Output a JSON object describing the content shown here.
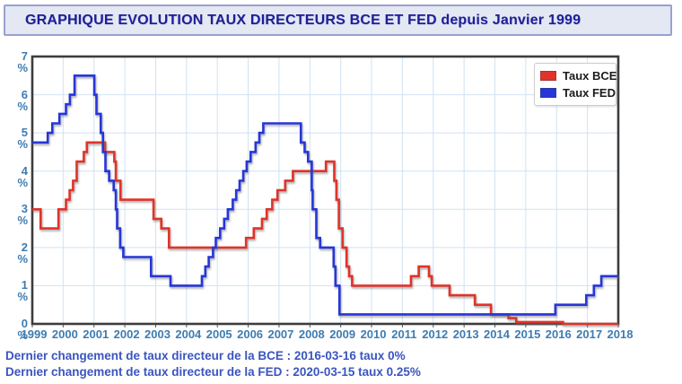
{
  "header": {
    "title": "GRAPHIQUE EVOLUTION TAUX DIRECTEURS BCE ET FED depuis Janvier 1999"
  },
  "footer": {
    "line1": "Dernier changement de taux directeur de la BCE : 2016-03-16 taux 0%",
    "line2": "Dernier changement de taux directeur de la FED : 2020-03-15 taux 0.25%"
  },
  "colors": {
    "bce_line": "#e0332a",
    "fed_line": "#2636d9",
    "grid": "#cfe2f4",
    "frame": "#3d3d3d",
    "axis_label": "#3e7cb1",
    "title_text": "#1f1f99",
    "title_bg": "#e3e8f3",
    "title_border": "#99a1cd",
    "footer_text": "#3a55c0"
  },
  "chart_data": {
    "type": "line",
    "subtype": "step",
    "title": "GRAPHIQUE EVOLUTION TAUX DIRECTEURS BCE ET FED depuis Janvier 1999",
    "xlabel": "",
    "ylabel": "",
    "y_unit": "%",
    "x_range": [
      1999,
      2018
    ],
    "y_range": [
      0,
      7
    ],
    "grid": true,
    "legend_position": "top-right",
    "x_ticks": [
      "1999",
      "2000",
      "2001",
      "2002",
      "2003",
      "2004",
      "2005",
      "2006",
      "2007",
      "2008",
      "2009",
      "2010",
      "2011",
      "2012",
      "2013",
      "2014",
      "2015",
      "2016",
      "2017",
      "2018"
    ],
    "y_ticks": [
      "0",
      "1",
      "2",
      "3",
      "4",
      "5",
      "6",
      "7"
    ],
    "legend": [
      {
        "label": "Taux BCE",
        "color": "#e0332a"
      },
      {
        "label": "Taux FED",
        "color": "#2636d9"
      }
    ],
    "series": [
      {
        "name": "Taux BCE",
        "color": "#e0332a",
        "end_x": 2018,
        "steps": [
          [
            1999.0,
            3.0
          ],
          [
            1999.27,
            2.5
          ],
          [
            1999.85,
            3.0
          ],
          [
            2000.09,
            3.25
          ],
          [
            2000.21,
            3.5
          ],
          [
            2000.32,
            3.75
          ],
          [
            2000.44,
            4.25
          ],
          [
            2000.67,
            4.5
          ],
          [
            2000.77,
            4.75
          ],
          [
            2001.36,
            4.5
          ],
          [
            2001.66,
            4.25
          ],
          [
            2001.71,
            3.75
          ],
          [
            2001.86,
            3.25
          ],
          [
            2002.93,
            2.75
          ],
          [
            2003.18,
            2.5
          ],
          [
            2003.43,
            2.0
          ],
          [
            2005.93,
            2.25
          ],
          [
            2006.18,
            2.5
          ],
          [
            2006.45,
            2.75
          ],
          [
            2006.6,
            3.0
          ],
          [
            2006.78,
            3.25
          ],
          [
            2006.95,
            3.5
          ],
          [
            2007.2,
            3.75
          ],
          [
            2007.45,
            4.0
          ],
          [
            2008.52,
            4.25
          ],
          [
            2008.79,
            3.75
          ],
          [
            2008.86,
            3.25
          ],
          [
            2008.94,
            2.5
          ],
          [
            2009.06,
            2.0
          ],
          [
            2009.19,
            1.5
          ],
          [
            2009.27,
            1.25
          ],
          [
            2009.37,
            1.0
          ],
          [
            2011.28,
            1.25
          ],
          [
            2011.53,
            1.5
          ],
          [
            2011.86,
            1.25
          ],
          [
            2011.95,
            1.0
          ],
          [
            2012.53,
            0.75
          ],
          [
            2013.35,
            0.5
          ],
          [
            2013.87,
            0.25
          ],
          [
            2014.44,
            0.15
          ],
          [
            2014.69,
            0.05
          ],
          [
            2016.21,
            0.0
          ]
        ]
      },
      {
        "name": "Taux FED",
        "color": "#2636d9",
        "end_x": 2018,
        "steps": [
          [
            1999.0,
            4.75
          ],
          [
            1999.5,
            5.0
          ],
          [
            1999.65,
            5.25
          ],
          [
            1999.88,
            5.5
          ],
          [
            2000.09,
            5.75
          ],
          [
            2000.22,
            6.0
          ],
          [
            2000.37,
            6.5
          ],
          [
            2001.01,
            6.0
          ],
          [
            2001.08,
            5.5
          ],
          [
            2001.22,
            5.0
          ],
          [
            2001.29,
            4.5
          ],
          [
            2001.37,
            4.0
          ],
          [
            2001.49,
            3.75
          ],
          [
            2001.64,
            3.5
          ],
          [
            2001.71,
            3.0
          ],
          [
            2001.75,
            2.5
          ],
          [
            2001.85,
            2.0
          ],
          [
            2001.95,
            1.75
          ],
          [
            2002.85,
            1.25
          ],
          [
            2003.48,
            1.0
          ],
          [
            2004.5,
            1.25
          ],
          [
            2004.61,
            1.5
          ],
          [
            2004.72,
            1.75
          ],
          [
            2004.86,
            2.0
          ],
          [
            2004.95,
            2.25
          ],
          [
            2005.09,
            2.5
          ],
          [
            2005.22,
            2.75
          ],
          [
            2005.34,
            3.0
          ],
          [
            2005.5,
            3.25
          ],
          [
            2005.61,
            3.5
          ],
          [
            2005.72,
            3.75
          ],
          [
            2005.84,
            4.0
          ],
          [
            2005.95,
            4.25
          ],
          [
            2006.08,
            4.5
          ],
          [
            2006.24,
            4.75
          ],
          [
            2006.36,
            5.0
          ],
          [
            2006.49,
            5.25
          ],
          [
            2007.71,
            4.75
          ],
          [
            2007.83,
            4.5
          ],
          [
            2007.94,
            4.25
          ],
          [
            2008.06,
            3.5
          ],
          [
            2008.09,
            3.0
          ],
          [
            2008.21,
            2.25
          ],
          [
            2008.33,
            2.0
          ],
          [
            2008.77,
            1.5
          ],
          [
            2008.83,
            1.0
          ],
          [
            2008.96,
            0.25
          ],
          [
            2015.96,
            0.5
          ],
          [
            2016.96,
            0.75
          ],
          [
            2017.21,
            1.0
          ],
          [
            2017.45,
            1.25
          ]
        ]
      }
    ]
  }
}
